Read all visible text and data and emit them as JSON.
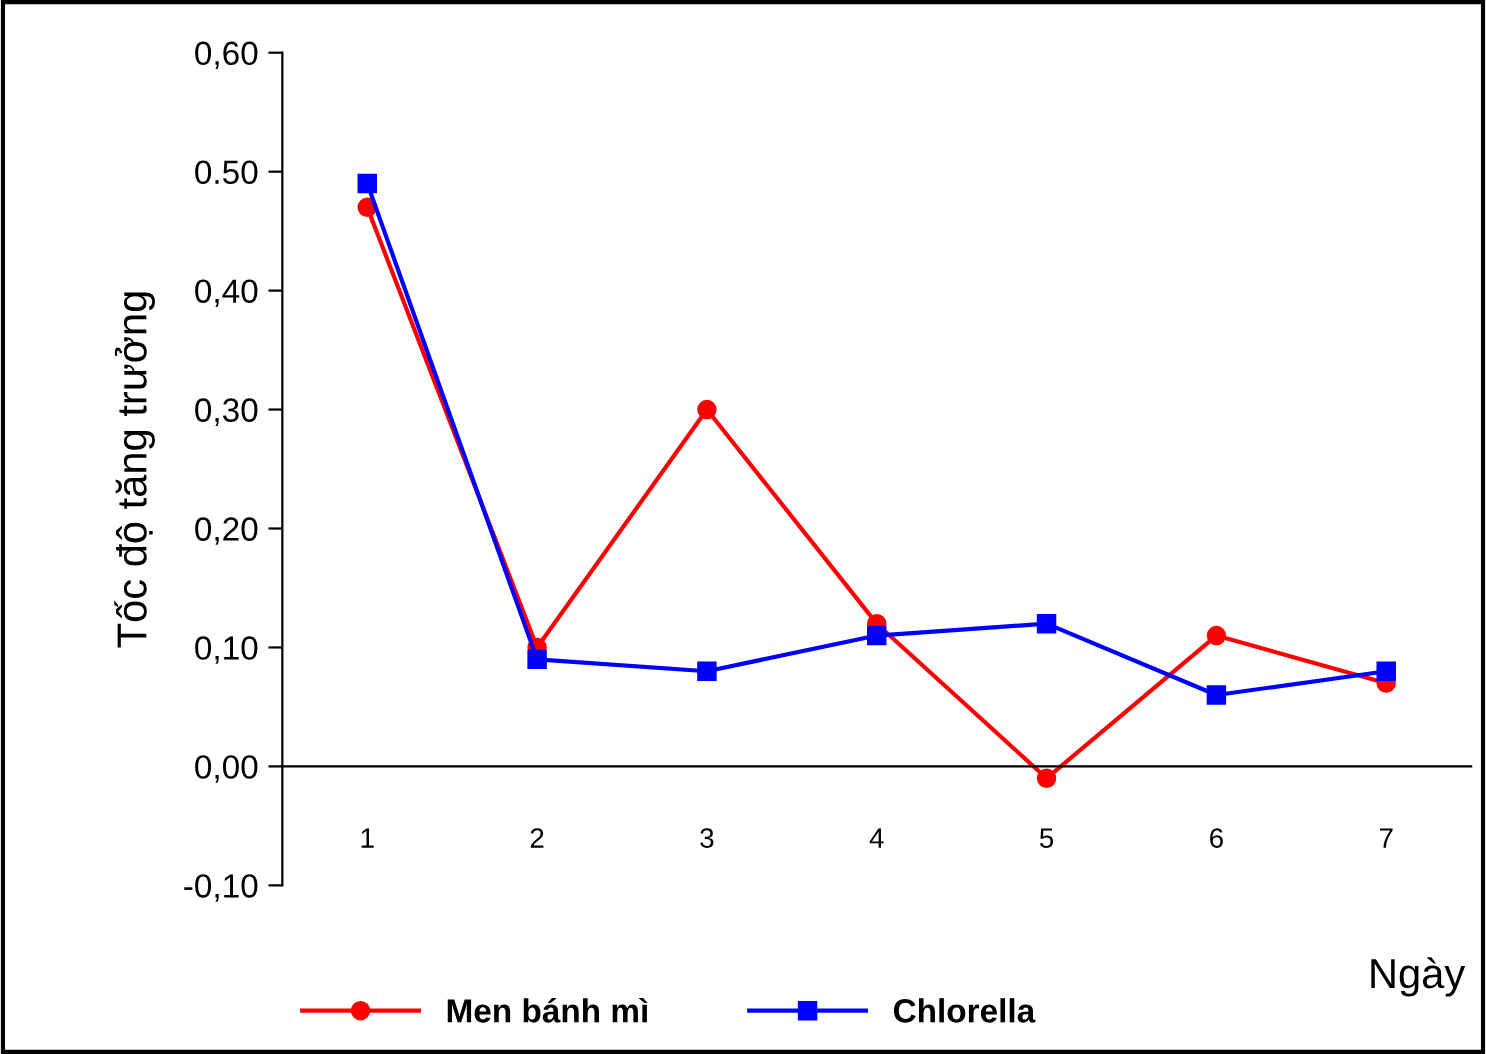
{
  "chart_data": {
    "type": "line",
    "xlabel": "Ngày",
    "ylabel": "Tốc độ tăng trưởng",
    "categories": [
      "1",
      "2",
      "3",
      "4",
      "5",
      "6",
      "7"
    ],
    "series": [
      {
        "name": "Men bánh mì",
        "color": "#ff0000",
        "marker": "circle",
        "values": [
          0.47,
          0.1,
          0.3,
          0.12,
          -0.01,
          0.11,
          0.07
        ]
      },
      {
        "name": "Chlorella",
        "color": "#0000ff",
        "marker": "square",
        "values": [
          0.49,
          0.09,
          0.08,
          0.11,
          0.12,
          0.06,
          0.08
        ]
      }
    ],
    "ylim": [
      -0.1,
      0.6
    ],
    "yticks": [
      {
        "value": -0.1,
        "label": "-0,10"
      },
      {
        "value": 0,
        "label": "0,00"
      },
      {
        "value": 0.1,
        "label": "0,10"
      },
      {
        "value": 0.2,
        "label": "0,20"
      },
      {
        "value": 0.3,
        "label": "0,30"
      },
      {
        "value": 0.4,
        "label": "0,40"
      },
      {
        "value": 0.5,
        "label": "0.50"
      },
      {
        "value": 0.6,
        "label": "0,60"
      }
    ],
    "grid": false,
    "legend": "bottom",
    "line_style": "solid"
  }
}
